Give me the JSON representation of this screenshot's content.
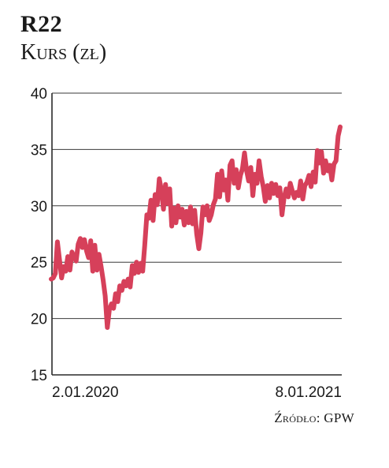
{
  "header": {
    "title": "R22",
    "subtitle": "Kurs (zł)"
  },
  "source": "Źródło: GPW",
  "chart_data": {
    "type": "line",
    "title": "R22",
    "subtitle": "Kurs (zł)",
    "xlabel": "",
    "ylabel": "",
    "ylim": [
      15,
      40
    ],
    "yticks": [
      15,
      20,
      25,
      30,
      35,
      40
    ],
    "x_range": [
      "2.01.2020",
      "8.01.2021"
    ],
    "x_tick_labels": [
      "2.01.2020",
      "8.01.2021"
    ],
    "grid": true,
    "line_color": "#d6405a",
    "series": [
      {
        "values": [
          23.5,
          23.6,
          24.0,
          26.8,
          25.2,
          23.6,
          24.6,
          24.2,
          25.5,
          24.3,
          25.9,
          25.5,
          25.1,
          26.6,
          27.1,
          26.3,
          27.0,
          26.0,
          25.4,
          26.9,
          24.2,
          26.5,
          24.3,
          25.7,
          24.6,
          23.4,
          22.0,
          19.2,
          20.8,
          21.3,
          20.9,
          22.2,
          21.5,
          22.9,
          22.5,
          23.3,
          22.9,
          23.5,
          22.8,
          24.7,
          24.0,
          25.0,
          24.1,
          24.9,
          24.2,
          26.5,
          29.2,
          28.9,
          30.5,
          28.7,
          31.0,
          30.1,
          32.4,
          31.4,
          29.7,
          31.9,
          30.2,
          31.5,
          28.2,
          29.8,
          28.5,
          30.0,
          29.0,
          29.7,
          28.3,
          29.5,
          28.5,
          29.9,
          28.4,
          29.6,
          27.5,
          26.2,
          27.6,
          29.9,
          29.2,
          30.0,
          28.7,
          29.2,
          30.1,
          30.6,
          32.8,
          30.8,
          33.1,
          31.4,
          32.3,
          30.5,
          33.6,
          34.0,
          32.0,
          33.2,
          31.6,
          32.7,
          33.3,
          34.7,
          33.1,
          32.2,
          33.4,
          30.9,
          32.8,
          32.0,
          34.0,
          32.6,
          31.7,
          30.4,
          31.8,
          30.7,
          32.0,
          31.1,
          31.9,
          30.9,
          31.6,
          29.2,
          30.7,
          31.5,
          30.8,
          32.0,
          31.3,
          30.7,
          31.2,
          30.9,
          32.2,
          30.6,
          31.8,
          32.1,
          32.7,
          31.7,
          33.0,
          32.1,
          34.9,
          33.8,
          34.8,
          32.9,
          34.0,
          33.1,
          33.6,
          32.3,
          33.7,
          34.0,
          36.2,
          37.0
        ]
      }
    ]
  }
}
